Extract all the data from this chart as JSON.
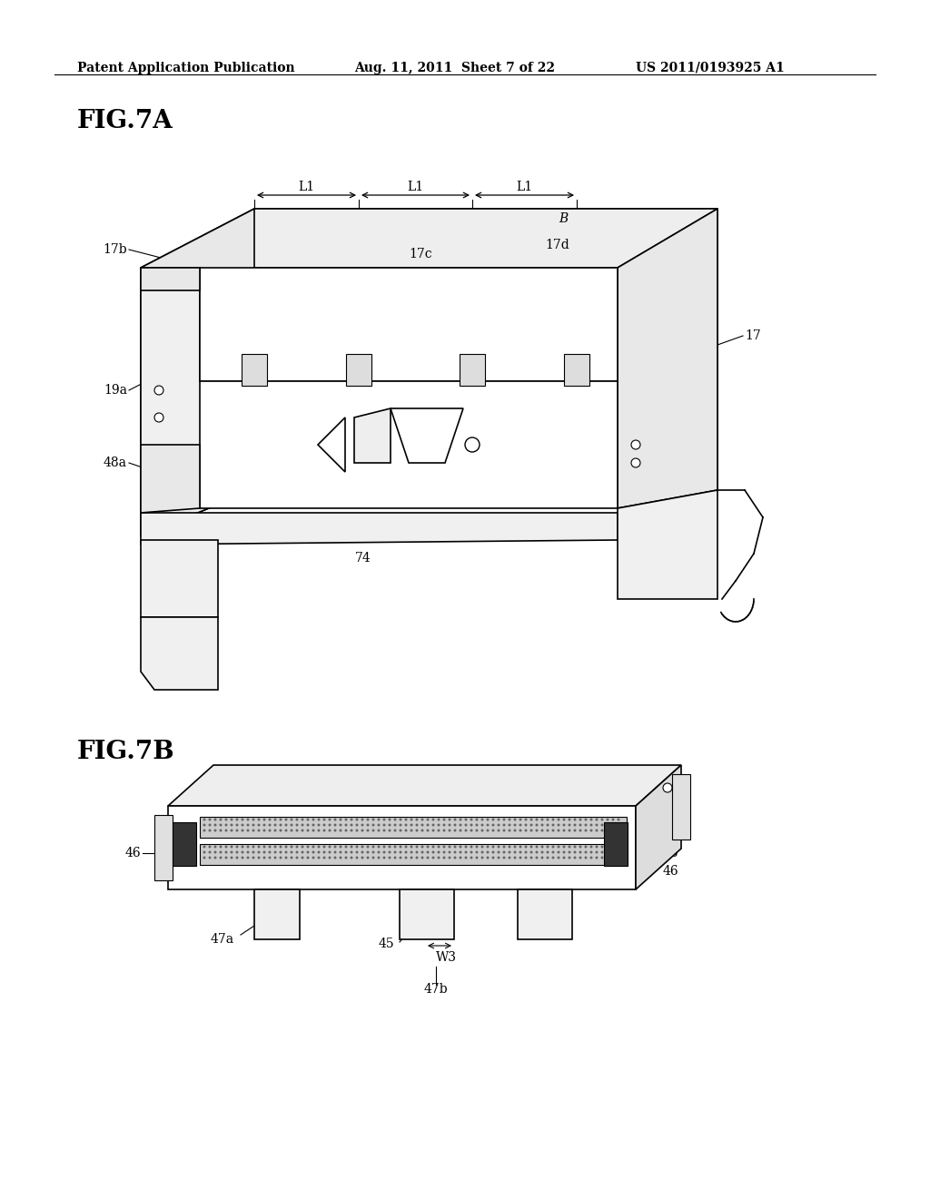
{
  "background_color": "#ffffff",
  "header_left": "Patent Application Publication",
  "header_center": "Aug. 11, 2011  Sheet 7 of 22",
  "header_right": "US 2011/0193925 A1",
  "fig7a_label": "FIG.7A",
  "fig7b_label": "FIG.7B",
  "header_font_size": 10,
  "label_font_size": 20,
  "annotation_font_size": 11
}
